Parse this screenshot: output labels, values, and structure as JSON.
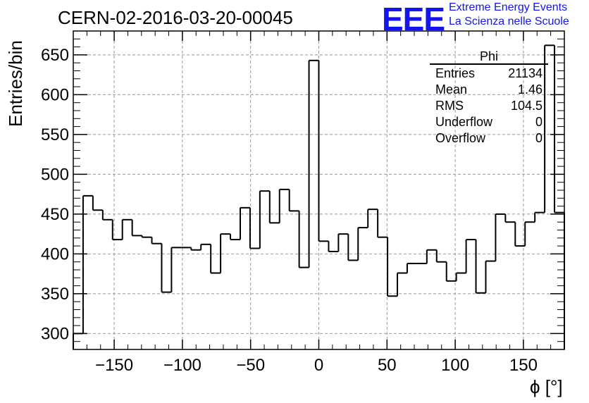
{
  "header": {
    "title": "CERN-02-2016-03-20-00045",
    "logo_text": "EEE",
    "logo_line1": "Extreme Energy Events",
    "logo_line2": "La Scienza nelle Scuole"
  },
  "stats_box": {
    "title": "Phi",
    "rows": [
      {
        "name": "Entries",
        "value": "21134"
      },
      {
        "name": "Mean",
        "value": "1.46"
      },
      {
        "name": "RMS",
        "value": "104.5"
      },
      {
        "name": "Underflow",
        "value": "0"
      },
      {
        "name": "Overflow",
        "value": "0"
      }
    ]
  },
  "chart_data": {
    "type": "bar",
    "style": "step-histogram",
    "title": "CERN-02-2016-03-20-00045",
    "xlabel": "ϕ [°]",
    "ylabel": "Entries/bin",
    "xlim": [
      -180,
      180
    ],
    "ylim": [
      280,
      680
    ],
    "bin_width": 7.2,
    "xticks": [
      -150,
      -100,
      -50,
      0,
      50,
      100,
      150
    ],
    "yticks": [
      300,
      350,
      400,
      450,
      500,
      550,
      600,
      650
    ],
    "grid": true,
    "values": [
      300,
      473,
      455,
      443,
      418,
      443,
      423,
      421,
      413,
      352,
      408,
      408,
      405,
      412,
      376,
      425,
      418,
      458,
      407,
      479,
      439,
      481,
      454,
      383,
      643,
      416,
      403,
      425,
      392,
      433,
      456,
      421,
      347,
      376,
      388,
      388,
      405,
      390,
      366,
      376,
      418,
      351,
      391,
      450,
      440,
      410,
      440,
      452,
      662,
      452
    ],
    "line_color": "#000000",
    "grid_color": "#999999"
  }
}
